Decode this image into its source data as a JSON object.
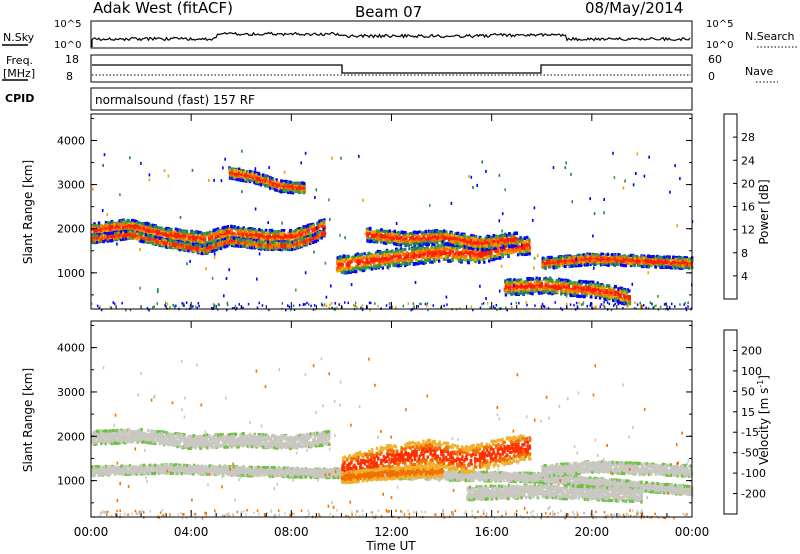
{
  "header": {
    "station": "Adak West (fitACF)",
    "beam": "Beam 07",
    "date": "08/May/2014"
  },
  "top_panels": {
    "nsky_label": "N.Sky",
    "nsearch_label": "N.Search",
    "nsky_ticks": [
      "10^5",
      "10^0"
    ],
    "nsearch_ticks": [
      "10^5",
      "10^0"
    ],
    "freq_label": "Freq.",
    "freq_unit": "[MHz]",
    "freq_ticks": [
      "18",
      "8"
    ],
    "nave_label": "Nave",
    "nave_ticks": [
      "60",
      "0"
    ],
    "cpid_label": "CPID",
    "cpid_value": "normalsound (fast) 157 RF"
  },
  "chart_data": [
    {
      "type": "heatmap",
      "name": "power",
      "ylabel": "Slant Range [km]",
      "yticks": [
        "4000",
        "3000",
        "2000",
        "1000"
      ],
      "ylim": [
        180,
        4600
      ],
      "xlim": [
        0,
        24
      ],
      "colorbar_label": "Power [dB]",
      "colorbar_ticks": [
        "28",
        "24",
        "20",
        "16",
        "12",
        "8",
        "4"
      ],
      "colorbar_colors": [
        "#0000ff",
        "#2040c0",
        "#208060",
        "#40a040",
        "#f0a000",
        "#f07000",
        "#ff2000"
      ],
      "bands": [
        {
          "t": [
            0,
            1.5,
            3,
            4.5,
            5.5,
            7,
            8,
            8.8,
            9.3
          ],
          "r": [
            2000,
            2100,
            1900,
            1800,
            1950,
            1850,
            1850,
            2000,
            2100
          ],
          "w": 300
        },
        {
          "t": [
            0,
            1.5,
            3,
            4.5,
            5.5,
            7,
            8,
            8.8,
            9.3
          ],
          "r": [
            1800,
            1900,
            1700,
            1550,
            1750,
            1650,
            1650,
            1800,
            1950
          ],
          "w": 180
        },
        {
          "t": [
            5.5,
            6.5,
            7.5,
            8.5
          ],
          "r": [
            3300,
            3200,
            3000,
            2950
          ],
          "w": 250
        },
        {
          "t": [
            9.8,
            11,
            12.5,
            14,
            15.5,
            16.5,
            17.5
          ],
          "r": [
            1200,
            1300,
            1400,
            1500,
            1450,
            1600,
            1650
          ],
          "w": 400
        },
        {
          "t": [
            11,
            12.5,
            14,
            15.5,
            17
          ],
          "r": [
            1900,
            1800,
            1850,
            1700,
            1800
          ],
          "w": 300
        },
        {
          "t": [
            16.5,
            18,
            19,
            20,
            21,
            21.5
          ],
          "r": [
            700,
            750,
            700,
            650,
            550,
            450
          ],
          "w": 350
        },
        {
          "t": [
            18,
            20,
            22,
            24
          ],
          "r": [
            1250,
            1350,
            1300,
            1250
          ],
          "w": 250
        }
      ]
    },
    {
      "type": "heatmap",
      "name": "velocity",
      "ylabel": "Slant Range [km]",
      "yticks": [
        "4000",
        "3000",
        "2000",
        "1000"
      ],
      "ylim": [
        180,
        4600
      ],
      "xlim": [
        0,
        24
      ],
      "xticks": [
        "00:00",
        "04:00",
        "08:00",
        "12:00",
        "16:00",
        "20:00",
        "00:00"
      ],
      "xlabel": "Time UT",
      "colorbar_label": "Velocity [m s^-1]",
      "colorbar_ticks": [
        "200",
        "100",
        "50",
        "15",
        "-15",
        "-50",
        "-100",
        "-200"
      ],
      "colorbar_colors": [
        "#3030c0",
        "#206060",
        "#208020",
        "#70c040",
        "#c8c8c0",
        "#f0b030",
        "#f07000",
        "#ff3000",
        "#e00000"
      ],
      "bands": [
        {
          "t": [
            0,
            2,
            4,
            6,
            8,
            9.5
          ],
          "r": [
            2000,
            2050,
            1900,
            1950,
            1900,
            2000
          ],
          "w": 300,
          "v": "gray"
        },
        {
          "t": [
            0,
            3,
            6,
            9,
            11,
            14,
            18,
            22,
            24
          ],
          "r": [
            1250,
            1300,
            1250,
            1200,
            1200,
            1150,
            1100,
            900,
            800
          ],
          "w": 200,
          "v": "gray"
        },
        {
          "t": [
            10,
            12,
            13.5,
            15,
            16.5,
            17.5
          ],
          "r": [
            1300,
            1550,
            1650,
            1500,
            1700,
            1800
          ],
          "w": 600,
          "v": "red"
        },
        {
          "t": [
            10,
            12,
            14
          ],
          "r": [
            1100,
            1200,
            1250
          ],
          "w": 250,
          "v": "orange"
        },
        {
          "t": [
            18,
            20,
            22,
            24
          ],
          "r": [
            1250,
            1350,
            1300,
            1250
          ],
          "w": 250,
          "v": "gray"
        },
        {
          "t": [
            15,
            18,
            20,
            22
          ],
          "r": [
            750,
            800,
            750,
            700
          ],
          "w": 300,
          "v": "gray"
        }
      ]
    }
  ]
}
